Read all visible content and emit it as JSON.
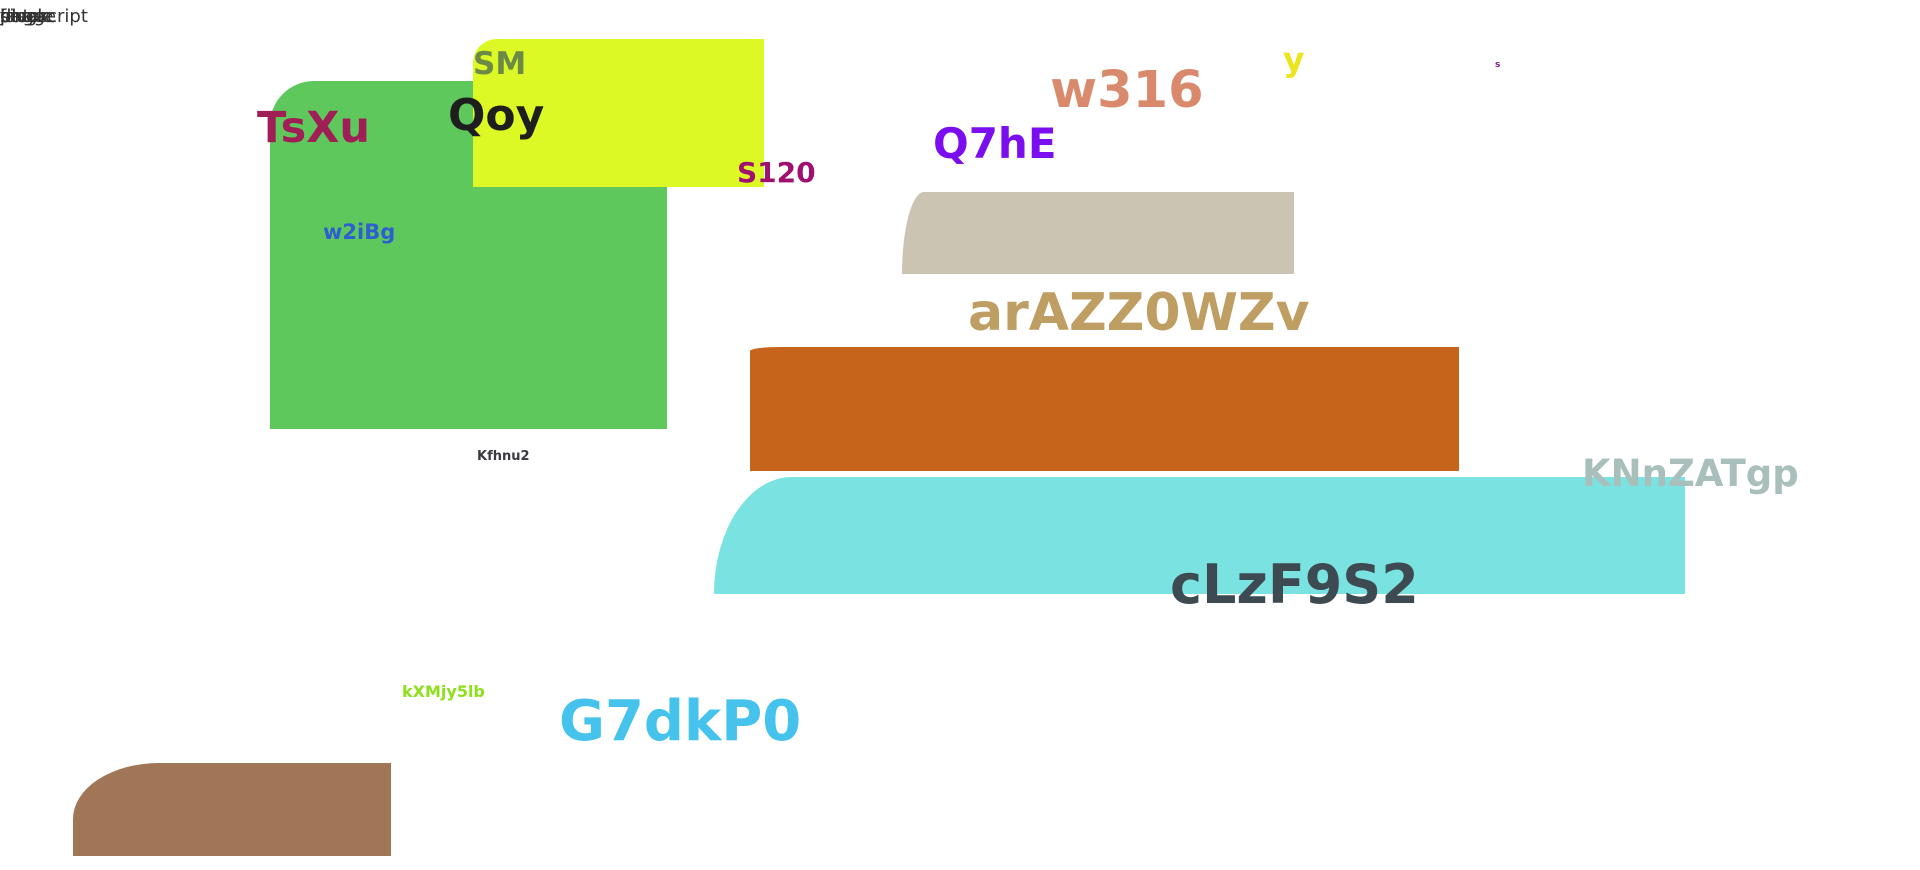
{
  "corner_text": [
    "javascript",
    "data",
    "single",
    "image",
    "file",
    "page",
    "block"
  ],
  "shapes": [
    {
      "name": "green-block",
      "color": "#5fc85d"
    },
    {
      "name": "lime-block",
      "color": "#dcf825"
    },
    {
      "name": "gray-block",
      "color": "#cbc4b3"
    },
    {
      "name": "orange-block",
      "color": "#c6641b"
    },
    {
      "name": "cyan-block",
      "color": "#7ae2e0"
    },
    {
      "name": "brown-block",
      "color": "#a07657"
    }
  ],
  "labels": [
    {
      "text": "SM",
      "color": "#6a8a46"
    },
    {
      "text": "Qoy",
      "color": "#1e1e1e"
    },
    {
      "text": "TsXu",
      "color": "#a01e56"
    },
    {
      "text": "S120",
      "color": "#a0106e"
    },
    {
      "text": "w2iBg",
      "color": "#2e5fd0"
    },
    {
      "text": "w316",
      "color": "#d98a6c"
    },
    {
      "text": "y",
      "color": "#ece41c"
    },
    {
      "text": "s",
      "color": "#7a1a7a"
    },
    {
      "text": "Q7hE",
      "color": "#7b0eee"
    },
    {
      "text": "arAZZ0WZv",
      "color": "#be9e62"
    },
    {
      "text": "Kfhnu2",
      "color": "#3a3a40"
    },
    {
      "text": "KNnZATgp",
      "color": "#a8bfbb"
    },
    {
      "text": "cLzF9S2",
      "color": "#3e4a52"
    },
    {
      "text": "kXMjy5lb",
      "color": "#8ee01c"
    },
    {
      "text": "G7dkP0",
      "color": "#45c3ec"
    }
  ]
}
